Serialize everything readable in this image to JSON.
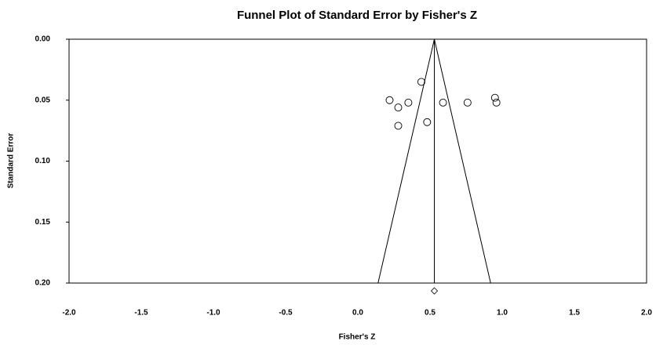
{
  "chart_data": {
    "type": "scatter",
    "title": "Funnel Plot of Standard Error by Fisher's Z",
    "x_label": "Fisher's Z",
    "y_label": "Standard Error",
    "x": [
      0.22,
      0.28,
      0.35,
      0.44,
      0.28,
      0.48,
      0.59,
      0.76,
      0.95,
      0.96
    ],
    "values": [
      0.05,
      0.056,
      0.052,
      0.035,
      0.071,
      0.068,
      0.052,
      0.052,
      0.048,
      0.052
    ],
    "xlim": [
      -2.0,
      2.0
    ],
    "ylim": [
      0.2,
      0.0
    ],
    "xticks": [
      {
        "value": -2.0,
        "label": "-2.0"
      },
      {
        "value": -1.5,
        "label": "-1.5"
      },
      {
        "value": -1.0,
        "label": "-1.0"
      },
      {
        "value": -0.5,
        "label": "-0.5"
      },
      {
        "value": 0.0,
        "label": "0.0"
      },
      {
        "value": 0.5,
        "label": "0.5"
      },
      {
        "value": 1.0,
        "label": "1.0"
      },
      {
        "value": 1.5,
        "label": "1.5"
      },
      {
        "value": 2.0,
        "label": "2.0"
      }
    ],
    "yticks": [
      {
        "value": 0.0,
        "label": "0.00"
      },
      {
        "value": 0.05,
        "label": "0.05"
      },
      {
        "value": 0.1,
        "label": "0.10"
      },
      {
        "value": 0.15,
        "label": "0.15"
      },
      {
        "value": 0.2,
        "label": "0.20"
      }
    ],
    "funnel": {
      "center": 0.53,
      "bottom_left": 0.14,
      "bottom_right": 0.92
    },
    "summary_effect": 0.53
  }
}
